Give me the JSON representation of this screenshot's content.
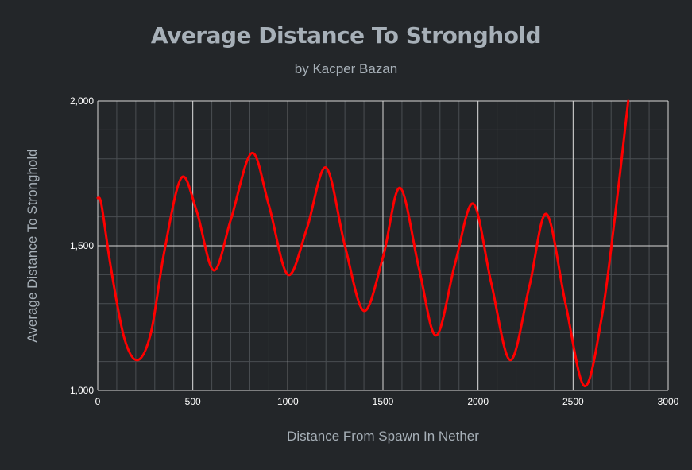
{
  "chart_data": {
    "type": "line",
    "title": "Average Distance To Stronghold",
    "subtitle": "by Kacper Bazan",
    "xlabel": "Distance From Spawn In Nether",
    "ylabel": "Average Distance To Stronghold",
    "xlim": [
      0,
      3000
    ],
    "ylim": [
      1000,
      2000
    ],
    "x_ticks": [
      "0",
      "500",
      "1000",
      "1500",
      "2000",
      "2500",
      "3000"
    ],
    "y_ticks": [
      "1,000",
      "1,500",
      "2,000"
    ],
    "grid": true,
    "legend": "none",
    "series": [
      {
        "color": "#ff0000",
        "x": [
          0,
          20,
          70,
          140,
          210,
          280,
          350,
          440,
          520,
          610,
          700,
          810,
          900,
          1000,
          1100,
          1200,
          1300,
          1400,
          1500,
          1590,
          1690,
          1780,
          1880,
          1975,
          2070,
          2170,
          2270,
          2360,
          2460,
          2560,
          2650,
          2720,
          2790
        ],
        "y": [
          1665,
          1640,
          1420,
          1180,
          1105,
          1200,
          1480,
          1735,
          1620,
          1415,
          1590,
          1820,
          1640,
          1400,
          1560,
          1770,
          1500,
          1275,
          1460,
          1700,
          1420,
          1190,
          1440,
          1645,
          1370,
          1105,
          1360,
          1610,
          1300,
          1015,
          1250,
          1600,
          2000
        ]
      }
    ],
    "colors": {
      "background": "#232629",
      "grid_major": "#d8d8d8",
      "grid_minor": "#4a4e52",
      "line": "#ff0000",
      "text": "#a7b0b8",
      "tick_text": "#ffffff"
    }
  }
}
